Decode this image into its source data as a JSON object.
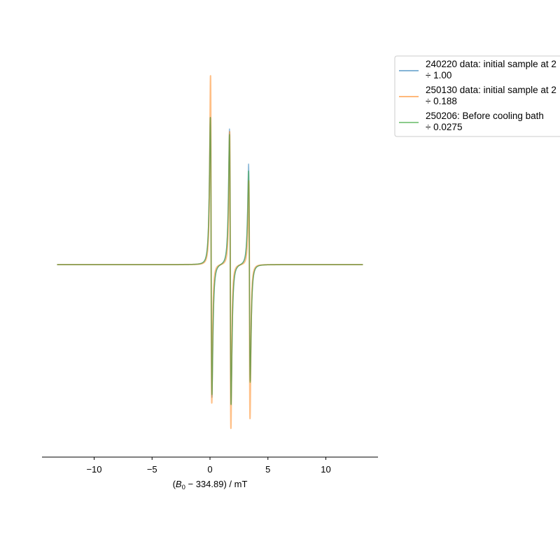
{
  "chart_data": {
    "type": "line",
    "title": "",
    "xlabel": "(B₀ − 334.89) / mT",
    "ylabel": "",
    "xlim": [
      -14.5,
      14.5
    ],
    "ylim": [
      -1.35,
      1.35
    ],
    "x_ticks": [
      -10,
      -5,
      0,
      5,
      10
    ],
    "x_tick_labels": [
      "−10",
      "−5",
      "0",
      "5",
      "10"
    ],
    "y_axis_visible": false,
    "grid": false,
    "legend_position": "outside-right-top",
    "x_range_of_data": [
      -13.2,
      13.2
    ],
    "peaks_x": [
      0.1,
      1.75,
      3.4
    ],
    "series": [
      {
        "name": "240220 data: initial sample at 2",
        "scale_text": "÷ 1.00",
        "color": "#1f77b4",
        "linewidth": 1.5,
        "peak_max": [
          1.05,
          0.97,
          0.72
        ],
        "peak_min": [
          -0.95,
          -1.0,
          -0.83
        ],
        "linewidths": [
          0.12,
          0.12,
          0.12
        ]
      },
      {
        "name": "250130 data: initial sample at 2",
        "scale_text": "÷ 0.188",
        "color": "#ff7f0e",
        "linewidth": 2.0,
        "peak_max": [
          1.35,
          0.95,
          0.6
        ],
        "peak_min": [
          -0.99,
          -1.17,
          -1.1
        ],
        "linewidths": [
          0.095,
          0.095,
          0.095
        ]
      },
      {
        "name": "250206: Before cooling bath",
        "scale_text": "÷ 0.0275",
        "color": "#2ca02c",
        "linewidth": 1.5,
        "peak_max": [
          1.05,
          0.93,
          0.67
        ],
        "peak_min": [
          -0.93,
          -1.0,
          -0.84
        ],
        "linewidths": [
          0.12,
          0.12,
          0.12
        ]
      }
    ]
  }
}
